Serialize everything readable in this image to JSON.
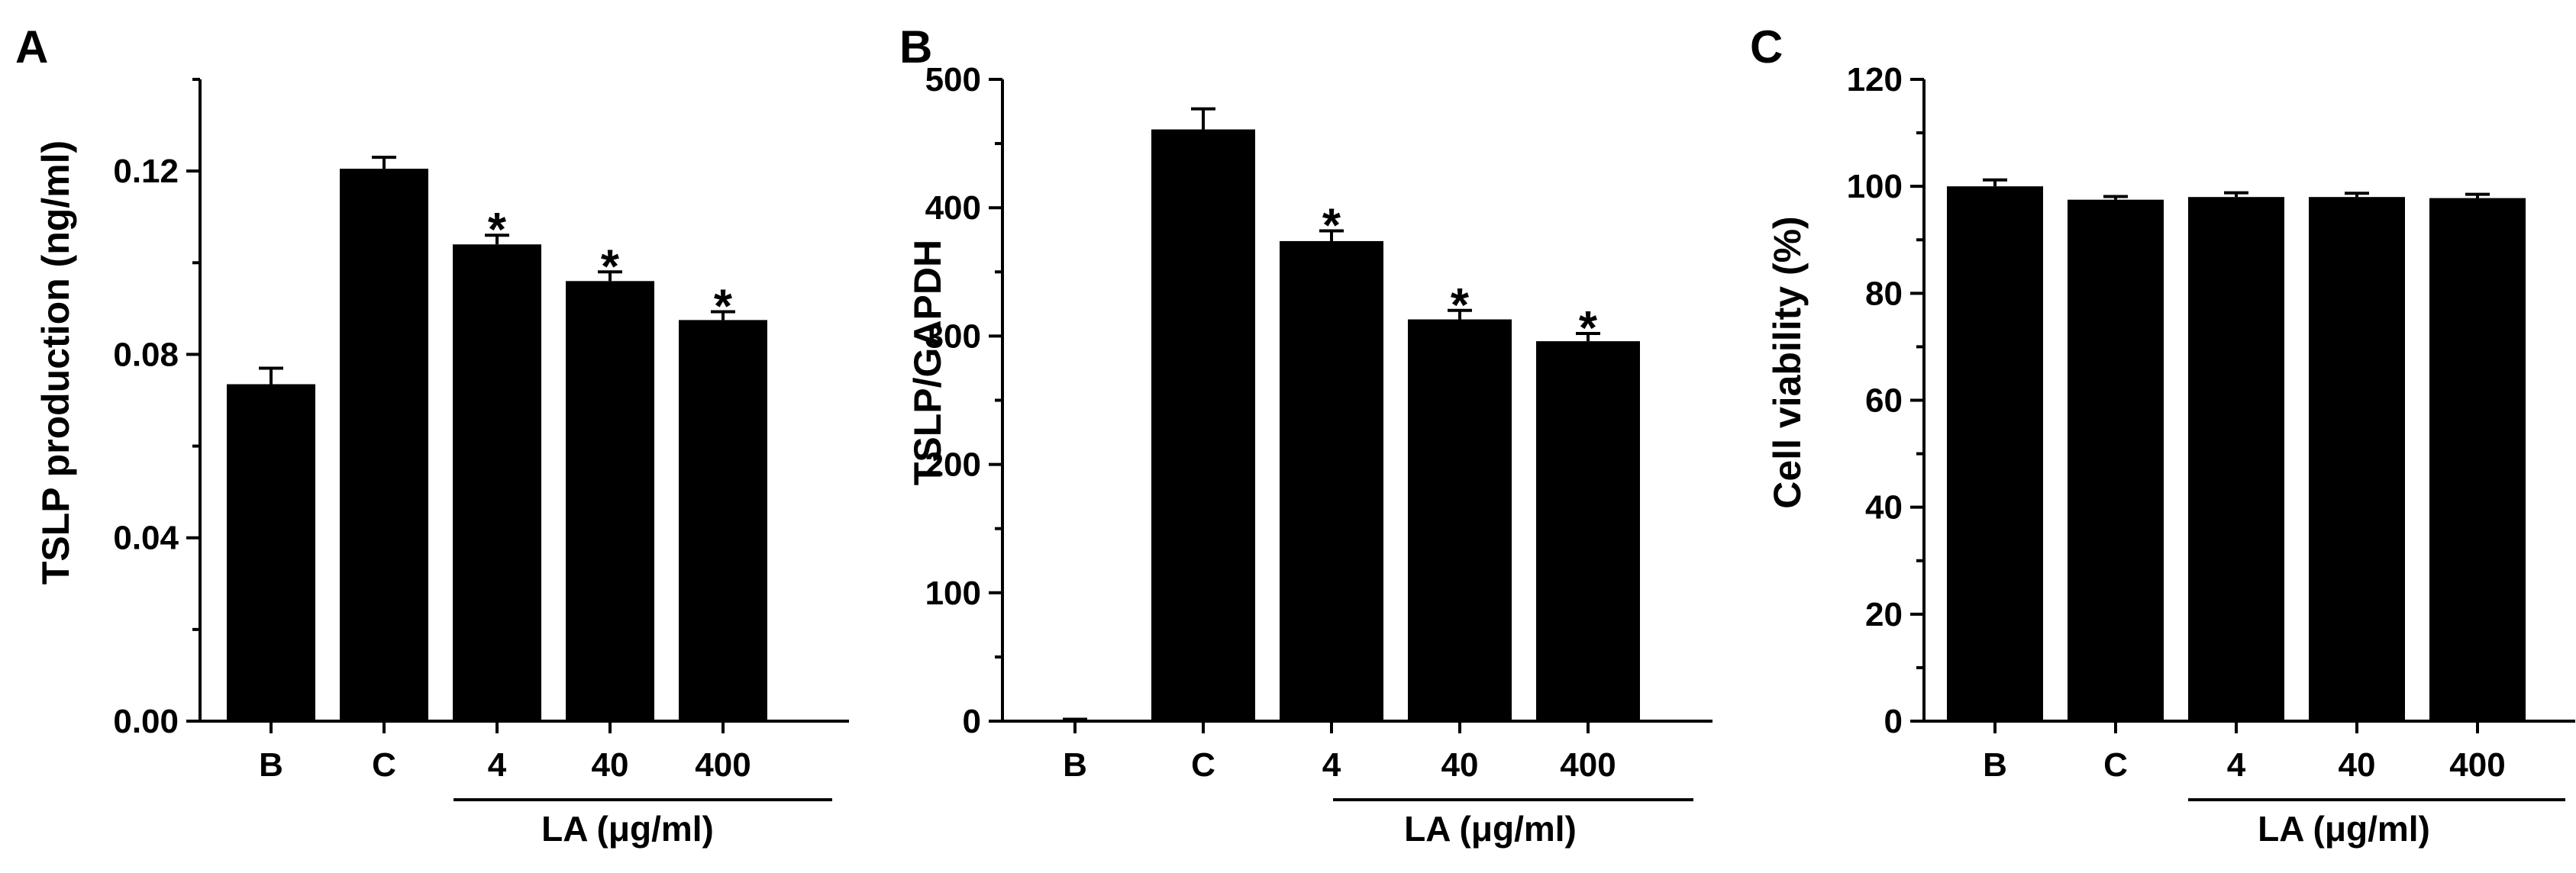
{
  "chart_data": [
    {
      "panel": "A",
      "type": "bar",
      "categories": [
        "B",
        "C",
        "4",
        "40",
        "400"
      ],
      "values": [
        0.0735,
        0.1205,
        0.104,
        0.096,
        0.0875
      ],
      "errors": [
        0.0035,
        0.0025,
        0.002,
        0.002,
        0.0018
      ],
      "significance": [
        "",
        "",
        "*",
        "*",
        "*"
      ],
      "ylabel": "TSLP production (ng/ml)",
      "ylim": [
        0,
        0.14
      ],
      "yticks": [
        "0.00",
        "0.04",
        "0.08",
        "0.12"
      ],
      "group_label": "LA (μg/ml)",
      "grid": false
    },
    {
      "panel": "B",
      "type": "bar",
      "categories": [
        "B",
        "C",
        "4",
        "40",
        "400"
      ],
      "values": [
        1,
        461,
        374,
        313,
        296
      ],
      "errors": [
        0.5,
        16,
        8,
        7,
        6
      ],
      "significance": [
        "",
        "",
        "*",
        "*",
        "*"
      ],
      "ylabel": "TSLP/GAPDH",
      "ylim": [
        0,
        500
      ],
      "yticks": [
        "0",
        "100",
        "200",
        "300",
        "400",
        "500"
      ],
      "group_label": "LA (μg/ml)",
      "grid": false
    },
    {
      "panel": "C",
      "type": "bar",
      "categories": [
        "B",
        "C",
        "4",
        "40",
        "400"
      ],
      "values": [
        100,
        97.5,
        98,
        98,
        97.8
      ],
      "errors": [
        1.2,
        0.6,
        0.8,
        0.7,
        0.7
      ],
      "significance": [
        "",
        "",
        "",
        "",
        ""
      ],
      "ylabel": "Cell viability (%)",
      "ylim": [
        0,
        120
      ],
      "yticks": [
        "0",
        "20",
        "40",
        "60",
        "80",
        "100",
        "120"
      ],
      "group_label": "LA (μg/ml)",
      "grid": false
    }
  ]
}
